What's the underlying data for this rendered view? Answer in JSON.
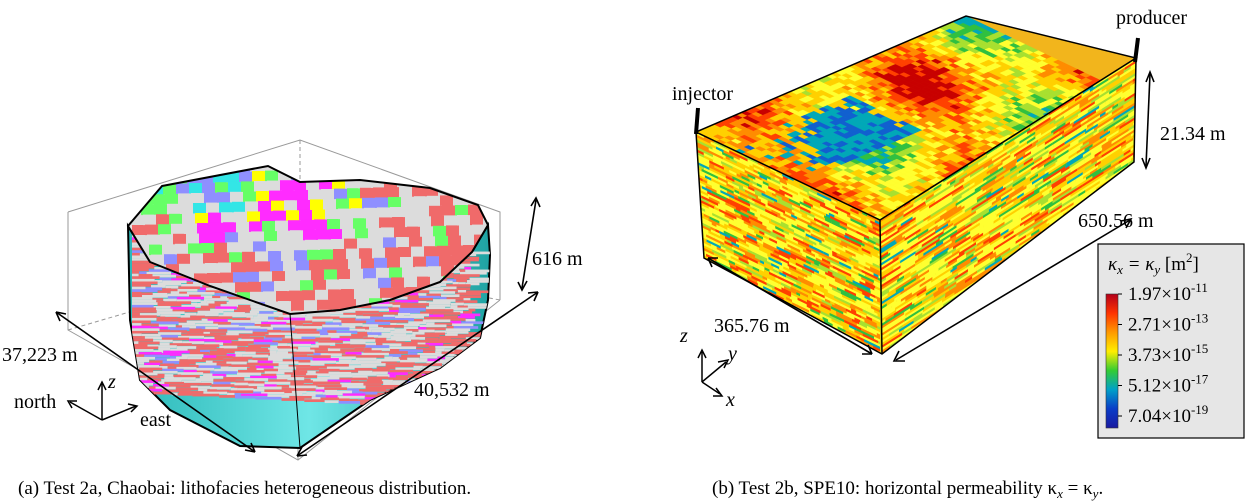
{
  "panel_a": {
    "caption": "(a) Test 2a, Chaobai: lithofacies heterogeneous distribution.",
    "dims": {
      "height": "616 m",
      "length_ns": "37,223 m",
      "length_ew": "40,532 m"
    },
    "compass": {
      "north": "north",
      "east": "east",
      "z": "z"
    },
    "facies_colors": [
      "#f06a6a",
      "#dcdcdc",
      "#ff2bff",
      "#ffff00",
      "#33e6e6",
      "#66ff66",
      "#8f8fff",
      "#2fd0d0"
    ]
  },
  "panel_b": {
    "caption": "(b) Test 2b, SPE10: horizontal permeability κ",
    "caption_sub1": "x",
    "caption_mid": " = κ",
    "caption_sub2": "y",
    "caption_end": ".",
    "wells": {
      "injector": "injector",
      "producer": "producer"
    },
    "dims": {
      "height": "21.34 m",
      "length": "650.56 m",
      "width": "365.76 m"
    },
    "axes": {
      "z": "z",
      "y": "y",
      "x": "x"
    },
    "legend": {
      "title_k": "κ",
      "title_sub1": "x",
      "title_eq": " = κ",
      "title_sub2": "y",
      "title_unit": " [m",
      "title_sup": "2",
      "title_close": "]",
      "ticks": [
        {
          "mant": "1.97×10",
          "exp": "-11"
        },
        {
          "mant": "2.71×10",
          "exp": "-13"
        },
        {
          "mant": "3.73×10",
          "exp": "-15"
        },
        {
          "mant": "5.12×10",
          "exp": "-17"
        },
        {
          "mant": "7.04×10",
          "exp": "-19"
        }
      ],
      "colormap": [
        "#b3001a",
        "#ff3300",
        "#ff9900",
        "#ffee00",
        "#33cc33",
        "#00a0c8",
        "#0a3cc8",
        "#1a1aa0"
      ]
    }
  }
}
